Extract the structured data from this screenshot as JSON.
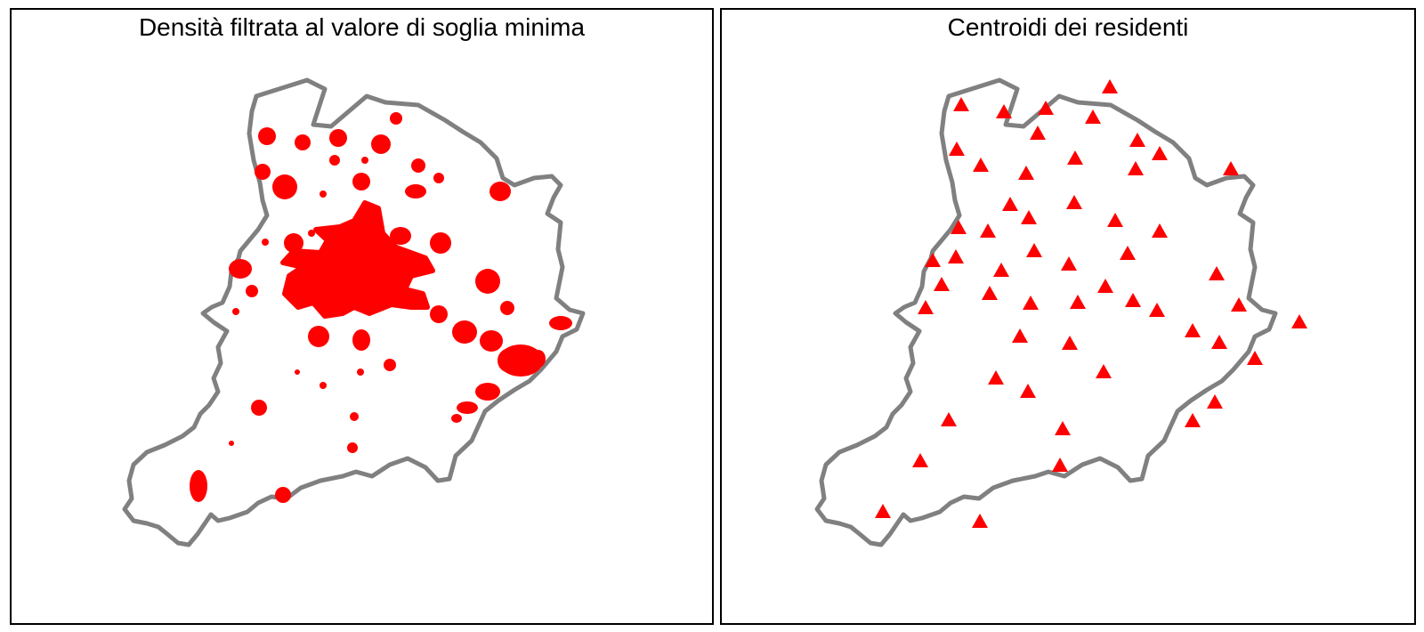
{
  "left_panel": {
    "title": "Densità filtrata al valore di soglia minima"
  },
  "right_panel": {
    "title": "Centroidi dei residenti"
  },
  "colors": {
    "boundary": "#808080",
    "density": "#ff0000",
    "centroid": "#ff0000",
    "frame": "#000000",
    "background": "#ffffff"
  },
  "map": {
    "boundary": "municipal-boundary",
    "left_layer": "filtered-density",
    "right_layer": "resident-centroids",
    "centroid_symbol": "triangle"
  }
}
